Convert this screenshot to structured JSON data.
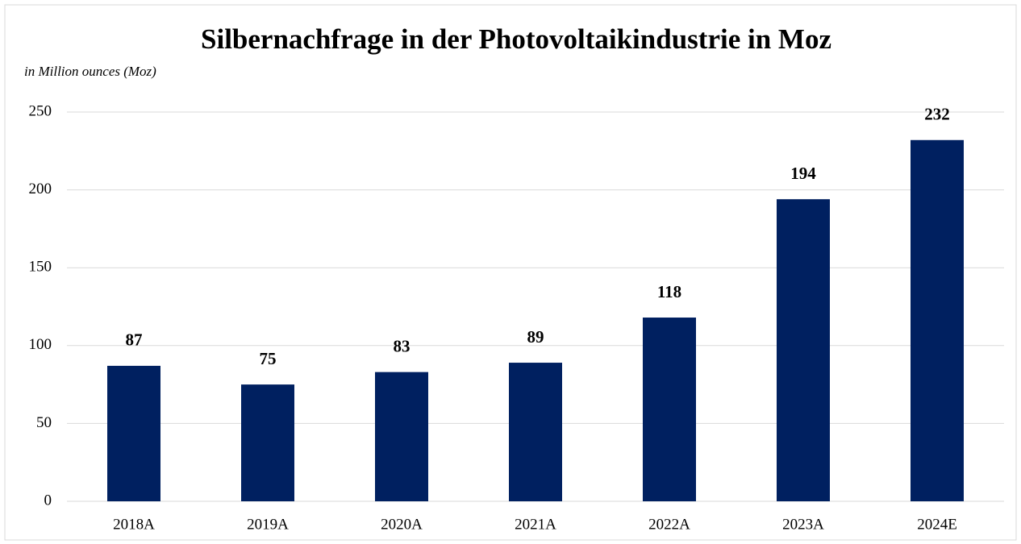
{
  "chart_data": {
    "type": "bar",
    "title": "Silbernachfrage in der Photovoltaikindustrie in Moz",
    "subtitle": "in Million ounces (Moz)",
    "categories": [
      "2018A",
      "2019A",
      "2020A",
      "2021A",
      "2022A",
      "2023A",
      "2024E"
    ],
    "values": [
      87,
      75,
      83,
      89,
      118,
      194,
      232
    ],
    "color": "#002060",
    "ylim": [
      0,
      250
    ],
    "yticks": [
      0,
      50,
      100,
      150,
      200,
      250
    ],
    "grid": true
  }
}
